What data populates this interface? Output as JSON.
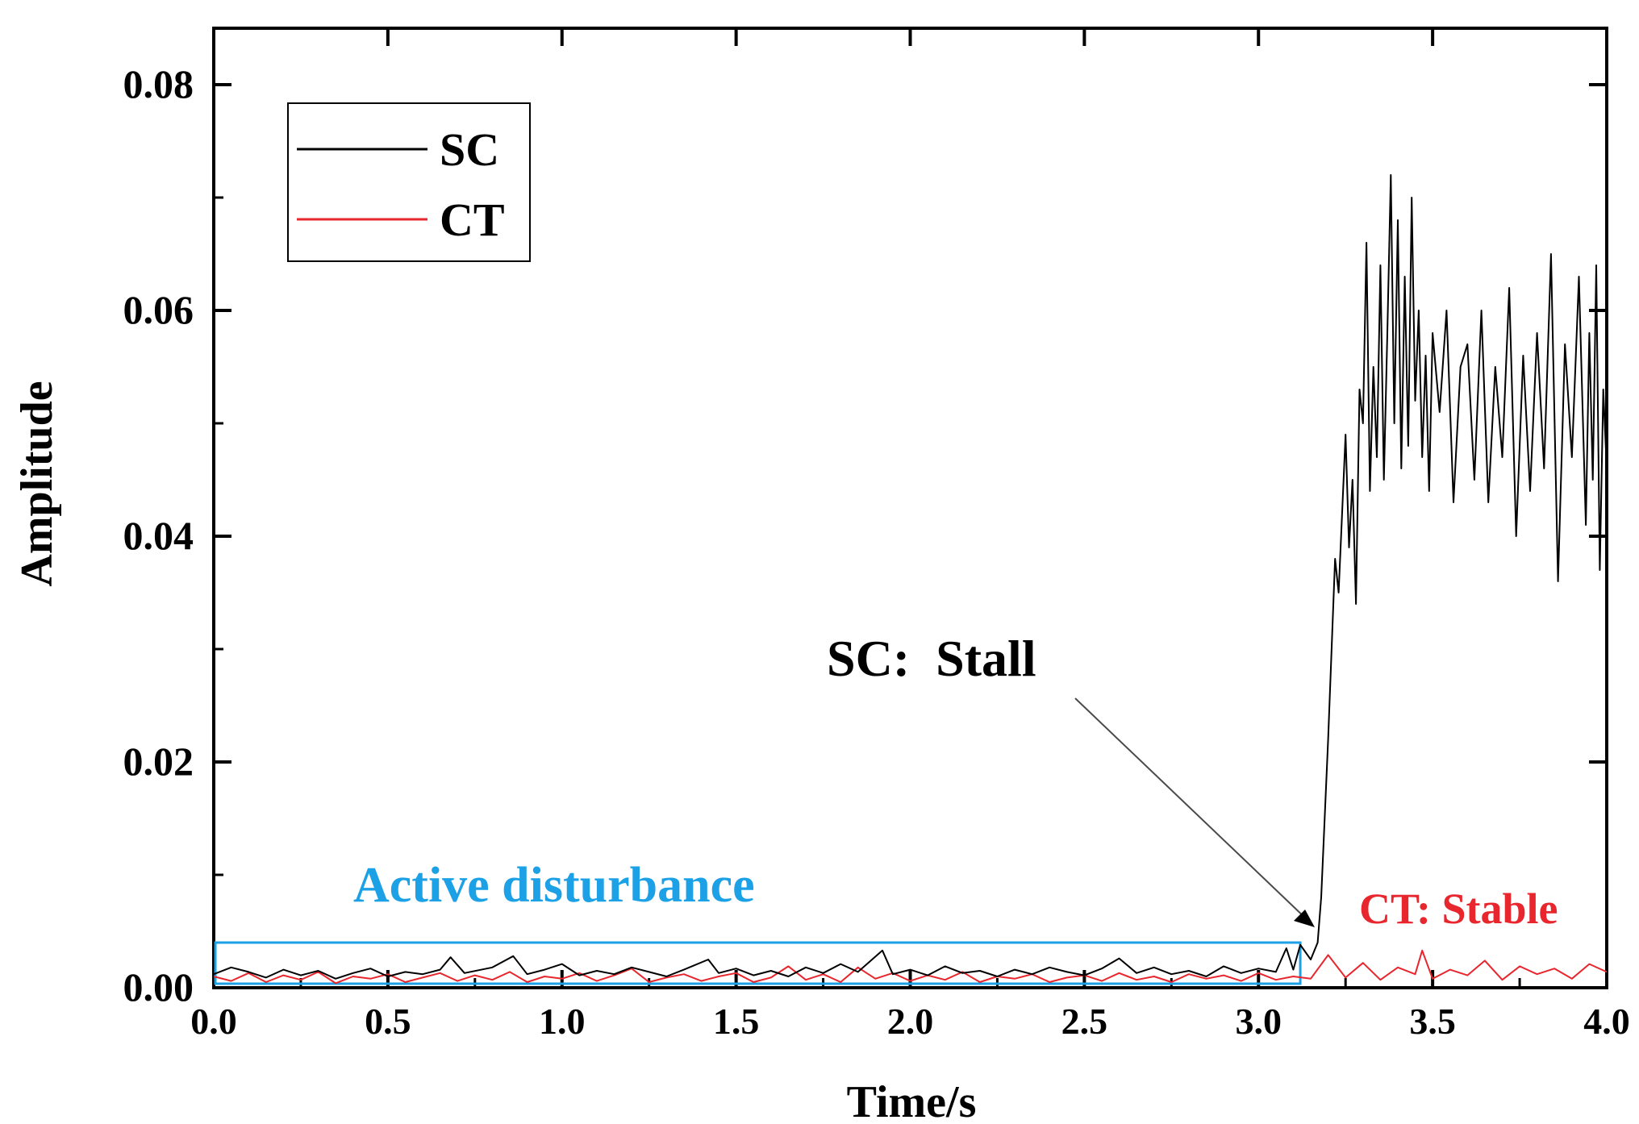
{
  "chart_data": {
    "type": "line",
    "xlabel": "Time/s",
    "ylabel": "Amplitude",
    "xlim": [
      0.0,
      4.0
    ],
    "ylim": [
      0.0,
      0.085
    ],
    "x_ticks": [
      0.0,
      0.5,
      1.0,
      1.5,
      2.0,
      2.5,
      3.0,
      3.5,
      4.0
    ],
    "x_tick_labels": [
      "0.0",
      "0.5",
      "1.0",
      "1.5",
      "2.0",
      "2.5",
      "3.0",
      "3.5",
      "4.0"
    ],
    "y_ticks": [
      0.0,
      0.02,
      0.04,
      0.06,
      0.08
    ],
    "y_tick_labels": [
      "0.00",
      "0.02",
      "0.04",
      "0.06",
      "0.08"
    ],
    "legend_position": "top-left",
    "series": [
      {
        "name": "SC",
        "color": "#000000",
        "x": [
          0.0,
          0.05,
          0.1,
          0.15,
          0.2,
          0.25,
          0.3,
          0.35,
          0.4,
          0.45,
          0.5,
          0.55,
          0.6,
          0.65,
          0.68,
          0.72,
          0.8,
          0.86,
          0.9,
          0.95,
          1.0,
          1.05,
          1.1,
          1.15,
          1.2,
          1.25,
          1.3,
          1.35,
          1.42,
          1.45,
          1.5,
          1.55,
          1.6,
          1.65,
          1.7,
          1.75,
          1.8,
          1.85,
          1.92,
          1.95,
          2.0,
          2.05,
          2.1,
          2.15,
          2.2,
          2.25,
          2.3,
          2.35,
          2.4,
          2.45,
          2.5,
          2.55,
          2.6,
          2.65,
          2.7,
          2.75,
          2.8,
          2.85,
          2.9,
          2.95,
          3.0,
          3.05,
          3.08,
          3.1,
          3.12,
          3.15,
          3.17,
          3.18,
          3.19,
          3.2,
          3.21,
          3.22,
          3.23,
          3.24,
          3.25,
          3.26,
          3.27,
          3.28,
          3.29,
          3.3,
          3.31,
          3.32,
          3.33,
          3.34,
          3.35,
          3.36,
          3.37,
          3.38,
          3.39,
          3.4,
          3.41,
          3.42,
          3.43,
          3.44,
          3.45,
          3.46,
          3.47,
          3.48,
          3.49,
          3.5,
          3.52,
          3.54,
          3.56,
          3.58,
          3.6,
          3.62,
          3.64,
          3.66,
          3.68,
          3.7,
          3.72,
          3.74,
          3.76,
          3.78,
          3.8,
          3.82,
          3.84,
          3.86,
          3.88,
          3.9,
          3.92,
          3.94,
          3.95,
          3.96,
          3.97,
          3.98,
          3.99,
          4.0
        ],
        "values": [
          0.0012,
          0.0018,
          0.0014,
          0.0009,
          0.0016,
          0.0011,
          0.0015,
          0.0008,
          0.0013,
          0.0017,
          0.001,
          0.0014,
          0.0012,
          0.0016,
          0.0027,
          0.0013,
          0.0018,
          0.0028,
          0.0012,
          0.0016,
          0.0021,
          0.0011,
          0.0015,
          0.0012,
          0.0018,
          0.0014,
          0.001,
          0.0016,
          0.0025,
          0.0013,
          0.0017,
          0.0011,
          0.0015,
          0.001,
          0.0018,
          0.0013,
          0.0021,
          0.0014,
          0.0033,
          0.0012,
          0.0016,
          0.0011,
          0.0019,
          0.0013,
          0.0015,
          0.001,
          0.0016,
          0.0012,
          0.0018,
          0.0014,
          0.0011,
          0.0017,
          0.0026,
          0.0013,
          0.0018,
          0.0012,
          0.0015,
          0.001,
          0.0019,
          0.0013,
          0.0017,
          0.0014,
          0.0035,
          0.0016,
          0.0038,
          0.0025,
          0.004,
          0.008,
          0.015,
          0.022,
          0.03,
          0.038,
          0.035,
          0.042,
          0.049,
          0.039,
          0.045,
          0.034,
          0.053,
          0.05,
          0.066,
          0.044,
          0.055,
          0.047,
          0.064,
          0.045,
          0.058,
          0.072,
          0.05,
          0.068,
          0.046,
          0.063,
          0.048,
          0.07,
          0.052,
          0.06,
          0.047,
          0.056,
          0.044,
          0.058,
          0.051,
          0.06,
          0.043,
          0.055,
          0.057,
          0.045,
          0.06,
          0.043,
          0.055,
          0.047,
          0.062,
          0.04,
          0.056,
          0.044,
          0.058,
          0.046,
          0.065,
          0.036,
          0.057,
          0.047,
          0.063,
          0.041,
          0.058,
          0.045,
          0.064,
          0.037,
          0.053,
          0.046
        ],
        "stroke_width": 2
      },
      {
        "name": "CT",
        "color": "#e8262d",
        "x": [
          0.0,
          0.05,
          0.1,
          0.15,
          0.2,
          0.25,
          0.3,
          0.35,
          0.4,
          0.45,
          0.5,
          0.55,
          0.6,
          0.65,
          0.7,
          0.75,
          0.8,
          0.85,
          0.9,
          0.95,
          1.0,
          1.05,
          1.1,
          1.15,
          1.2,
          1.25,
          1.3,
          1.35,
          1.4,
          1.45,
          1.5,
          1.55,
          1.6,
          1.65,
          1.7,
          1.75,
          1.8,
          1.85,
          1.9,
          1.95,
          2.0,
          2.05,
          2.1,
          2.15,
          2.2,
          2.25,
          2.3,
          2.35,
          2.4,
          2.45,
          2.5,
          2.55,
          2.6,
          2.65,
          2.7,
          2.75,
          2.8,
          2.85,
          2.9,
          2.95,
          3.0,
          3.05,
          3.1,
          3.15,
          3.2,
          3.25,
          3.3,
          3.35,
          3.4,
          3.45,
          3.47,
          3.5,
          3.55,
          3.6,
          3.65,
          3.7,
          3.75,
          3.8,
          3.85,
          3.9,
          3.95,
          4.0
        ],
        "values": [
          0.001,
          0.0006,
          0.0013,
          0.0005,
          0.0011,
          0.0007,
          0.0014,
          0.0004,
          0.001,
          0.0008,
          0.0012,
          0.0005,
          0.0009,
          0.0013,
          0.0006,
          0.0011,
          0.0007,
          0.0014,
          0.0005,
          0.001,
          0.0008,
          0.0013,
          0.0006,
          0.0011,
          0.0017,
          0.0005,
          0.0009,
          0.0012,
          0.0006,
          0.001,
          0.0013,
          0.0005,
          0.0009,
          0.0019,
          0.0007,
          0.0012,
          0.0005,
          0.0018,
          0.0008,
          0.0013,
          0.0006,
          0.0011,
          0.0007,
          0.0014,
          0.0005,
          0.001,
          0.0008,
          0.0012,
          0.0005,
          0.0009,
          0.0011,
          0.0006,
          0.0013,
          0.0007,
          0.001,
          0.0005,
          0.0012,
          0.0008,
          0.0011,
          0.0006,
          0.0013,
          0.0007,
          0.001,
          0.0008,
          0.0029,
          0.0009,
          0.0022,
          0.0007,
          0.0018,
          0.0012,
          0.0033,
          0.0008,
          0.0016,
          0.0011,
          0.0024,
          0.0007,
          0.0019,
          0.0012,
          0.0017,
          0.0008,
          0.0021,
          0.0014
        ],
        "stroke_width": 2
      }
    ],
    "annotations": [
      {
        "id": "sc",
        "text": "SC:  Stall",
        "color": "#000000"
      },
      {
        "id": "ct",
        "text": "CT: Stable",
        "color": "#e8262d"
      },
      {
        "id": "active",
        "text": "Active disturbance",
        "color": "#1da1e6"
      }
    ],
    "highlight_box": {
      "x_range": [
        0.0,
        3.12
      ],
      "y_range": [
        0.0,
        0.004
      ],
      "color": "#1da1e6"
    }
  }
}
